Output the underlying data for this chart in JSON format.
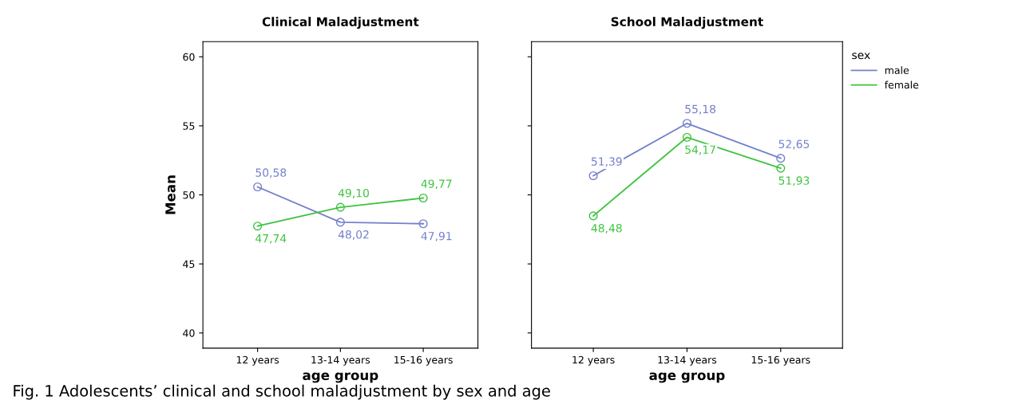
{
  "chart_data": [
    {
      "type": "line",
      "title": "Clinical Maladjustment",
      "xlabel": "age group",
      "ylabel": "Mean",
      "categories": [
        "12 years",
        "13-14 years",
        "15-16 years"
      ],
      "ylim": [
        38.9,
        61.1
      ],
      "yticks": [
        40,
        45,
        50,
        55,
        60
      ],
      "marker": "circle",
      "line_style": "solid",
      "grid": false,
      "series": [
        {
          "color": "#7480cc",
          "values": [
            50.58,
            48.02,
            47.91
          ],
          "value_labels": [
            "50,58",
            "48,02",
            "47,91"
          ]
        },
        {
          "color": "#3fc43f",
          "values": [
            47.74,
            49.1,
            49.77
          ],
          "value_labels": [
            "47,74",
            "49,10",
            "49,77"
          ]
        }
      ],
      "annotations": [
        "Fig. 1 Adolescents’ clinical and school maladjustment by sex and age"
      ]
    },
    {
      "type": "line",
      "title": "School Maladjustment",
      "xlabel": "age group",
      "categories": [
        "12 years",
        "13-14 years",
        "15-16 years"
      ],
      "ylim": [
        38.9,
        61.1
      ],
      "yticks": [
        40,
        45,
        50,
        55,
        60
      ],
      "tick_labels": "x",
      "marker": "circle",
      "line_style": "solid",
      "grid": false,
      "legend": "top right",
      "legend_title": "sex",
      "series": [
        {
          "name": "male",
          "color": "#7480cc",
          "values": [
            51.39,
            55.18,
            52.65
          ],
          "value_labels": [
            "51,39",
            "55,18",
            "52,65"
          ]
        },
        {
          "name": "female",
          "color": "#3fc43f",
          "values": [
            48.48,
            54.17,
            51.93
          ],
          "value_labels": [
            "48,48",
            "54,17",
            "51,93"
          ]
        }
      ]
    }
  ]
}
